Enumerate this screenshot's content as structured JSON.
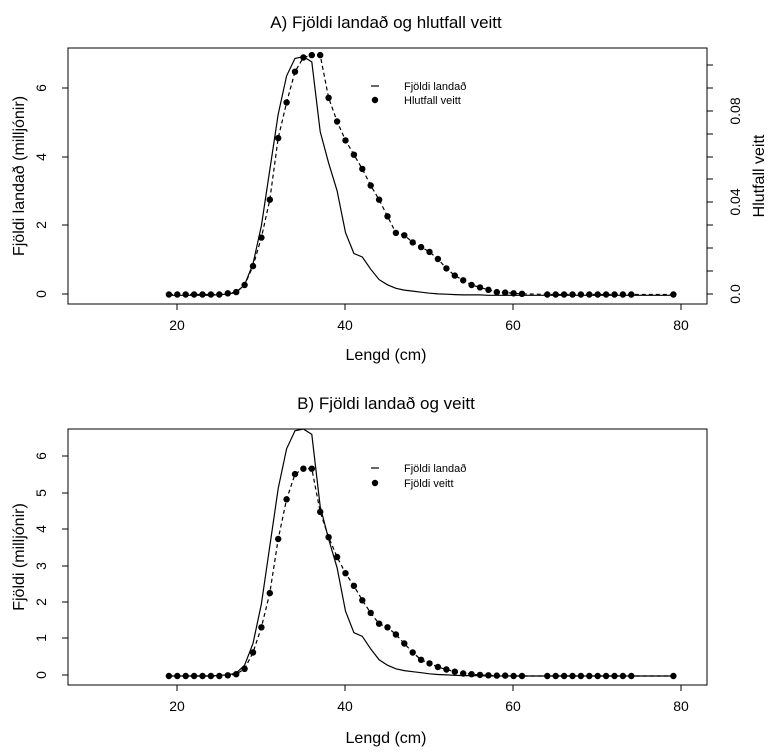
{
  "chart_data": [
    {
      "type": "line",
      "title": "A) Fjöldi landað og hlutfall veitt",
      "xlabel": "Lengd (cm)",
      "ylabel": "Fjöldi landað (milljónir)",
      "y2label": "Hlutfall veitt",
      "xlim": [
        7,
        83
      ],
      "ylim": [
        -0.25,
        7.1
      ],
      "y2lim": [
        -0.004,
        0.104
      ],
      "x_ticks": [
        20,
        40,
        60,
        80
      ],
      "y_ticks": [
        0,
        2,
        4,
        6
      ],
      "y2_ticks": [
        0.0,
        0.04,
        0.08
      ],
      "y2_tick_labels": [
        "0.0",
        "0.04",
        "0.08"
      ],
      "legend_position": "top-right",
      "legend": [
        "Fjöldi landað",
        "Hlutfall veitt"
      ],
      "grid": false,
      "series": [
        {
          "name": "Fjöldi landað",
          "axis": "left",
          "style": "solid-line",
          "x": [
            19,
            20,
            21,
            22,
            23,
            24,
            25,
            26,
            27,
            28,
            29,
            30,
            31,
            32,
            33,
            34,
            35,
            36,
            37,
            38,
            39,
            40,
            41,
            42,
            43,
            44,
            45,
            46,
            47,
            48,
            49,
            50,
            51,
            52,
            53,
            54,
            55,
            56,
            57,
            58,
            59,
            60,
            61,
            62,
            63,
            64,
            65,
            66,
            67,
            68,
            69,
            70,
            71,
            72,
            73,
            74,
            75,
            76,
            77,
            78,
            79
          ],
          "values": [
            0,
            0,
            0,
            0,
            0,
            0,
            0.02,
            0.03,
            0.08,
            0.3,
            0.9,
            2.0,
            3.6,
            5.2,
            6.3,
            6.8,
            6.85,
            6.7,
            4.7,
            3.8,
            3.0,
            1.8,
            1.2,
            1.1,
            0.75,
            0.45,
            0.3,
            0.2,
            0.15,
            0.12,
            0.09,
            0.06,
            0.04,
            0.03,
            0.02,
            0.01,
            0.01,
            0.01,
            0,
            0,
            0,
            0,
            0,
            0,
            0,
            0,
            0,
            0,
            0,
            0,
            0,
            0,
            0,
            0,
            0,
            0,
            0,
            0,
            0,
            0,
            0
          ]
        },
        {
          "name": "Hlutfall veitt",
          "axis": "right",
          "style": "dots-dashed",
          "x": [
            19,
            20,
            21,
            22,
            23,
            24,
            25,
            26,
            27,
            28,
            29,
            30,
            31,
            32,
            33,
            34,
            35,
            36,
            37,
            38,
            39,
            40,
            41,
            42,
            43,
            44,
            45,
            46,
            47,
            48,
            49,
            50,
            51,
            52,
            53,
            54,
            55,
            56,
            57,
            58,
            59,
            60,
            61,
            64,
            65,
            66,
            67,
            68,
            69,
            70,
            71,
            72,
            73,
            74,
            79
          ],
          "values": [
            0,
            0,
            0,
            0,
            0,
            0,
            0,
            0.0005,
            0.001,
            0.004,
            0.012,
            0.024,
            0.04,
            0.066,
            0.081,
            0.094,
            0.1,
            0.101,
            0.101,
            0.083,
            0.073,
            0.065,
            0.059,
            0.053,
            0.046,
            0.04,
            0.033,
            0.026,
            0.025,
            0.022,
            0.02,
            0.018,
            0.015,
            0.011,
            0.008,
            0.006,
            0.004,
            0.003,
            0.002,
            0.001,
            0.0008,
            0.0005,
            0.0003,
            0,
            0,
            0,
            0,
            0,
            0,
            0,
            0,
            0,
            0,
            0,
            0
          ]
        }
      ]
    },
    {
      "type": "line",
      "title": "B) Fjöldi landað og veitt",
      "xlabel": "Lengd (cm)",
      "ylabel": "Fjöldi (milljónir)",
      "xlim": [
        7,
        83
      ],
      "ylim": [
        -0.25,
        6.85
      ],
      "x_ticks": [
        20,
        40,
        60,
        80
      ],
      "y_ticks": [
        0,
        1,
        2,
        3,
        4,
        5,
        6
      ],
      "legend_position": "top-right",
      "legend": [
        "Fjöldi landað",
        "Fjöldi veitt"
      ],
      "grid": false,
      "series": [
        {
          "name": "Fjöldi landað",
          "axis": "left",
          "style": "solid-line",
          "x": [
            19,
            20,
            21,
            22,
            23,
            24,
            25,
            26,
            27,
            28,
            29,
            30,
            31,
            32,
            33,
            34,
            35,
            36,
            37,
            38,
            39,
            40,
            41,
            42,
            43,
            44,
            45,
            46,
            47,
            48,
            49,
            50,
            51,
            52,
            53,
            54,
            55,
            56,
            57,
            58,
            59,
            60,
            61,
            62,
            63,
            64,
            65,
            66,
            67,
            68,
            69,
            70,
            71,
            72,
            73,
            74,
            75,
            76,
            77,
            78,
            79
          ],
          "values": [
            0,
            0,
            0,
            0,
            0,
            0,
            0.02,
            0.03,
            0.08,
            0.3,
            0.9,
            2.0,
            3.6,
            5.2,
            6.3,
            6.8,
            6.85,
            6.7,
            4.7,
            3.8,
            3.0,
            1.8,
            1.2,
            1.1,
            0.75,
            0.45,
            0.3,
            0.2,
            0.15,
            0.12,
            0.09,
            0.06,
            0.04,
            0.03,
            0.02,
            0.01,
            0.01,
            0.01,
            0,
            0,
            0,
            0,
            0,
            0,
            0,
            0,
            0,
            0,
            0,
            0,
            0,
            0,
            0,
            0,
            0,
            0,
            0,
            0,
            0,
            0,
            0
          ]
        },
        {
          "name": "Fjöldi veitt",
          "axis": "left",
          "style": "dots-dashed",
          "x": [
            19,
            20,
            21,
            22,
            23,
            24,
            25,
            26,
            27,
            28,
            29,
            30,
            31,
            32,
            33,
            34,
            35,
            36,
            37,
            38,
            39,
            40,
            41,
            42,
            43,
            44,
            45,
            46,
            47,
            48,
            49,
            50,
            51,
            52,
            53,
            54,
            55,
            56,
            57,
            58,
            59,
            60,
            61,
            64,
            65,
            66,
            67,
            68,
            69,
            70,
            71,
            72,
            73,
            74,
            79
          ],
          "values": [
            0,
            0,
            0,
            0,
            0,
            0,
            0,
            0.02,
            0.05,
            0.2,
            0.65,
            1.35,
            2.3,
            3.8,
            4.9,
            5.6,
            5.75,
            5.75,
            4.55,
            3.85,
            3.3,
            2.85,
            2.5,
            2.1,
            1.75,
            1.45,
            1.35,
            1.15,
            0.9,
            0.65,
            0.45,
            0.35,
            0.25,
            0.18,
            0.12,
            0.07,
            0.05,
            0.03,
            0.02,
            0.01,
            0.01,
            0,
            0,
            0,
            0,
            0,
            0,
            0,
            0,
            0,
            0,
            0,
            0,
            0,
            0
          ]
        }
      ]
    }
  ]
}
